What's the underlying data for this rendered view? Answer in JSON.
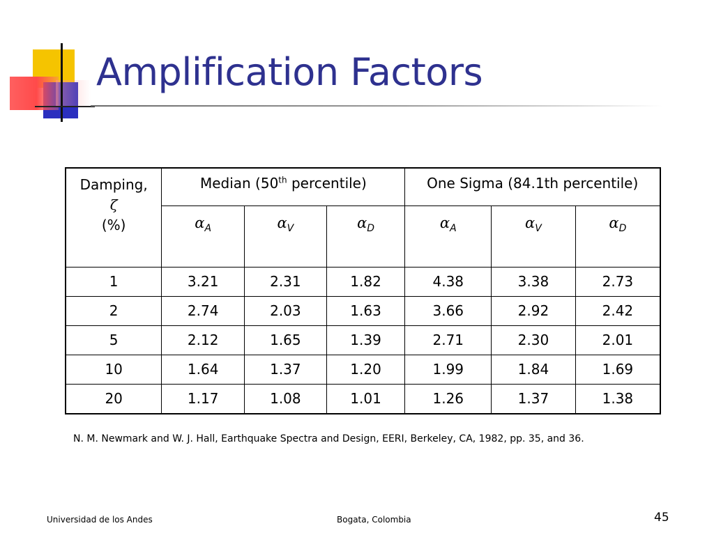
{
  "slide": {
    "title": "Amplification Factors",
    "footer_left": "Universidad de los Andes",
    "footer_center": "Bogata, Colombia",
    "page_number": "45",
    "citation": "N. M. Newmark and W. J. Hall, Earthquake Spectra and Design, EERI, Berkeley, CA, 1982, pp. 35, and 36."
  },
  "table": {
    "damping_header": {
      "line1": "Damping,",
      "symbol": "ζ",
      "unit": "(%)"
    },
    "group_median": {
      "pre": "Median (50",
      "sup": "th",
      "post": " percentile)"
    },
    "group_sigma": "One Sigma (84.1th percentile)",
    "alpha_symbol": "α",
    "subscripts": [
      "A",
      "V",
      "D",
      "A",
      "V",
      "D"
    ],
    "rows": [
      {
        "damping": "1",
        "values": [
          "3.21",
          "2.31",
          "1.82",
          "4.38",
          "3.38",
          "2.73"
        ]
      },
      {
        "damping": "2",
        "values": [
          "2.74",
          "2.03",
          "1.63",
          "3.66",
          "2.92",
          "2.42"
        ]
      },
      {
        "damping": "5",
        "values": [
          "2.12",
          "1.65",
          "1.39",
          "2.71",
          "2.30",
          "2.01"
        ]
      },
      {
        "damping": "10",
        "values": [
          "1.64",
          "1.37",
          "1.20",
          "1.99",
          "1.84",
          "1.69"
        ]
      },
      {
        "damping": "20",
        "values": [
          "1.17",
          "1.08",
          "1.01",
          "1.26",
          "1.37",
          "1.38"
        ]
      }
    ]
  },
  "colors": {
    "title": "#2e318f",
    "logo_yellow": "#f5c400",
    "logo_blue": "#2b2fbf",
    "logo_red": "#ff4a4a"
  }
}
